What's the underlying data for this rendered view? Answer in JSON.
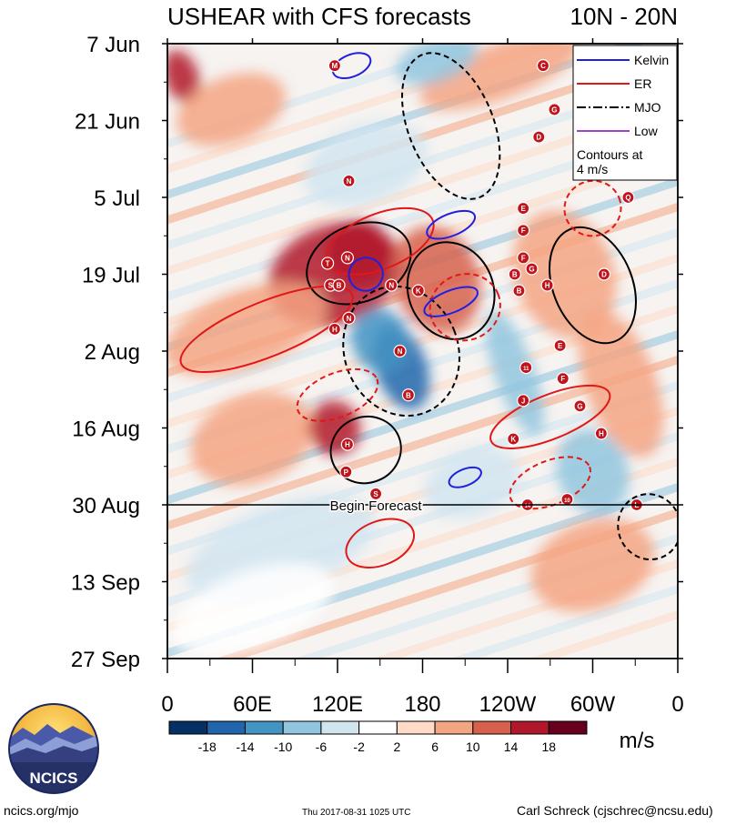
{
  "chart_data": {
    "type": "heatmap",
    "title": "USHEAR with CFS forecasts",
    "region": "10N - 20N",
    "x_ticks": [
      "0",
      "60E",
      "120E",
      "180",
      "120W",
      "60W",
      "0"
    ],
    "x_tick_lons": [
      0,
      60,
      120,
      180,
      240,
      300,
      360
    ],
    "xlim": [
      0,
      360
    ],
    "y_ticks": [
      "7 Jun",
      "21 Jun",
      "5 Jul",
      "19 Jul",
      "2 Aug",
      "16 Aug",
      "30 Aug",
      "13 Sep",
      "27 Sep"
    ],
    "y_tick_days": [
      0,
      14,
      28,
      42,
      56,
      70,
      84,
      98,
      112
    ],
    "ylim_days": [
      0,
      112
    ],
    "forecast_start_day": 84,
    "forecast_label": "Begin Forecast",
    "colorbar": {
      "labels": [
        "-18",
        "-14",
        "-10",
        "-6",
        "-2",
        "2",
        "6",
        "10",
        "14",
        "18"
      ],
      "colors": [
        "#053061",
        "#2166ac",
        "#4393c3",
        "#92c5de",
        "#d1e5f0",
        "#ffffff",
        "#fddbc7",
        "#f4a582",
        "#d6604d",
        "#b2182b",
        "#67001f"
      ],
      "units": "m/s"
    },
    "legend": {
      "position": "top-right",
      "entries": [
        {
          "label": "Kelvin",
          "color": "#2020e0",
          "dash": "solid"
        },
        {
          "label": "ER",
          "color": "#e01818",
          "dash": "solid"
        },
        {
          "label": "MJO",
          "color": "#000000",
          "dash": "dashdot"
        },
        {
          "label": "Low",
          "color": "#a040d0",
          "dash": "solid"
        }
      ],
      "note_line1": "Contours at",
      "note_line2": "4 m/s"
    },
    "field_blobs": [
      {
        "lon": 118,
        "day": 42,
        "rlon": 48,
        "rday": 9,
        "v": 14
      },
      {
        "lon": 135,
        "day": 38,
        "rlon": 22,
        "rday": 6,
        "v": 16
      },
      {
        "lon": 190,
        "day": 43,
        "rlon": 30,
        "rday": 10,
        "v": 12
      },
      {
        "lon": 55,
        "day": 52,
        "rlon": 60,
        "rday": 7,
        "v": 8
      },
      {
        "lon": 165,
        "day": 59,
        "rlon": 18,
        "rday": 8,
        "v": -18
      },
      {
        "lon": 150,
        "day": 54,
        "rlon": 20,
        "rday": 6,
        "v": -12
      },
      {
        "lon": 280,
        "day": 42,
        "rlon": 35,
        "rday": 12,
        "v": 8
      },
      {
        "lon": 60,
        "day": 72,
        "rlon": 45,
        "rday": 8,
        "v": 6
      },
      {
        "lon": 118,
        "day": 70,
        "rlon": 18,
        "rday": 5,
        "v": 14
      },
      {
        "lon": 10,
        "day": 6,
        "rlon": 12,
        "rday": 5,
        "v": 14
      },
      {
        "lon": 235,
        "day": 5,
        "rlon": 60,
        "rday": 5,
        "v": 8
      },
      {
        "lon": 190,
        "day": 3,
        "rlon": 30,
        "rday": 4,
        "v": -10
      },
      {
        "lon": 140,
        "day": 22,
        "rlon": 45,
        "rday": 7,
        "v": -6
      },
      {
        "lon": 300,
        "day": 78,
        "rlon": 25,
        "rday": 8,
        "v": -10
      },
      {
        "lon": 215,
        "day": 80,
        "rlon": 35,
        "rday": 6,
        "v": -6
      },
      {
        "lon": 320,
        "day": 62,
        "rlon": 25,
        "rday": 14,
        "v": 6
      },
      {
        "lon": 80,
        "day": 92,
        "rlon": 70,
        "rday": 8,
        "v": -6
      },
      {
        "lon": 300,
        "day": 95,
        "rlon": 45,
        "rday": 8,
        "v": 6
      },
      {
        "lon": 60,
        "day": 103,
        "rlon": 60,
        "rday": 7,
        "v": -2
      },
      {
        "lon": 245,
        "day": 60,
        "rlon": 14,
        "rday": 12,
        "v": -8
      },
      {
        "lon": 45,
        "day": 12,
        "rlon": 40,
        "rday": 6,
        "v": 6
      }
    ],
    "contours": [
      {
        "type": "MJO",
        "dash": "solid",
        "lon": 135,
        "day": 40,
        "rlon": 38,
        "rday": 7
      },
      {
        "type": "MJO",
        "dash": "solid",
        "lon": 200,
        "day": 45,
        "rlon": 30,
        "rday": 9
      },
      {
        "type": "MJO",
        "dash": "solid",
        "lon": 300,
        "day": 44,
        "rlon": 28,
        "rday": 11
      },
      {
        "type": "MJO",
        "dash": "solid",
        "lon": 140,
        "day": 74,
        "rlon": 25,
        "rday": 6
      },
      {
        "type": "MJO",
        "dash": "dashed",
        "lon": 165,
        "day": 56,
        "rlon": 40,
        "rday": 12
      },
      {
        "type": "MJO",
        "dash": "dashed",
        "lon": 200,
        "day": 15,
        "rlon": 30,
        "rday": 14
      },
      {
        "type": "MJO",
        "dash": "dashed",
        "lon": 340,
        "day": 88,
        "rlon": 22,
        "rday": 6
      },
      {
        "type": "ER",
        "dash": "solid",
        "lon": 70,
        "day": 52,
        "rlon": 65,
        "rday": 5
      },
      {
        "type": "ER",
        "dash": "solid",
        "lon": 150,
        "day": 36,
        "rlon": 40,
        "rday": 5
      },
      {
        "type": "ER",
        "dash": "solid",
        "lon": 270,
        "day": 68,
        "rlon": 45,
        "rday": 4
      },
      {
        "type": "ER",
        "dash": "solid",
        "lon": 150,
        "day": 91,
        "rlon": 25,
        "rday": 4
      },
      {
        "type": "ER",
        "dash": "dashed",
        "lon": 120,
        "day": 64,
        "rlon": 30,
        "rday": 4
      },
      {
        "type": "ER",
        "dash": "dashed",
        "lon": 210,
        "day": 48,
        "rlon": 25,
        "rday": 6
      },
      {
        "type": "ER",
        "dash": "dashed",
        "lon": 300,
        "day": 30,
        "rlon": 20,
        "rday": 5
      },
      {
        "type": "ER",
        "dash": "dashed",
        "lon": 270,
        "day": 80,
        "rlon": 30,
        "rday": 4
      },
      {
        "type": "Kelvin",
        "dash": "solid",
        "lon": 140,
        "day": 42,
        "rlon": 12,
        "rday": 3
      },
      {
        "type": "Kelvin",
        "dash": "solid",
        "lon": 200,
        "day": 47,
        "rlon": 20,
        "rday": 2
      },
      {
        "type": "Kelvin",
        "dash": "solid",
        "lon": 200,
        "day": 33,
        "rlon": 18,
        "rday": 2
      },
      {
        "type": "Kelvin",
        "dash": "solid",
        "lon": 210,
        "day": 79,
        "rlon": 12,
        "rday": 1.5
      },
      {
        "type": "Kelvin",
        "dash": "solid",
        "lon": 130,
        "day": 4,
        "rlon": 14,
        "rday": 2
      }
    ],
    "storm_markers": [
      {
        "label": "M",
        "lon": 118,
        "day": 4
      },
      {
        "label": "C",
        "lon": 265,
        "day": 4
      },
      {
        "label": "G",
        "lon": 273,
        "day": 12
      },
      {
        "label": "D",
        "lon": 262,
        "day": 17
      },
      {
        "label": "N",
        "lon": 128,
        "day": 25
      },
      {
        "label": "E",
        "lon": 251,
        "day": 30
      },
      {
        "label": "Q",
        "lon": 325,
        "day": 28
      },
      {
        "label": "F",
        "lon": 251,
        "day": 34
      },
      {
        "label": "F",
        "lon": 251,
        "day": 39
      },
      {
        "label": "T",
        "lon": 113,
        "day": 40
      },
      {
        "label": "N",
        "lon": 127,
        "day": 39
      },
      {
        "label": "B",
        "lon": 245,
        "day": 42
      },
      {
        "label": "G",
        "lon": 257,
        "day": 41
      },
      {
        "label": "D",
        "lon": 308,
        "day": 42
      },
      {
        "label": "S",
        "lon": 115,
        "day": 44
      },
      {
        "label": "B",
        "lon": 121,
        "day": 44
      },
      {
        "label": "N",
        "lon": 158,
        "day": 44
      },
      {
        "label": "K",
        "lon": 177,
        "day": 45
      },
      {
        "label": "B",
        "lon": 248,
        "day": 45
      },
      {
        "label": "H",
        "lon": 268,
        "day": 44
      },
      {
        "label": "N",
        "lon": 128,
        "day": 50
      },
      {
        "label": "H",
        "lon": 118,
        "day": 52
      },
      {
        "label": "E",
        "lon": 277,
        "day": 55
      },
      {
        "label": "N",
        "lon": 164,
        "day": 56
      },
      {
        "label": "11",
        "lon": 253,
        "day": 59
      },
      {
        "label": "F",
        "lon": 279,
        "day": 61
      },
      {
        "label": "B",
        "lon": 170,
        "day": 64
      },
      {
        "label": "J",
        "lon": 251,
        "day": 65
      },
      {
        "label": "G",
        "lon": 291,
        "day": 66
      },
      {
        "label": "H",
        "lon": 306,
        "day": 71
      },
      {
        "label": "K",
        "lon": 244,
        "day": 72
      },
      {
        "label": "H",
        "lon": 127,
        "day": 73
      },
      {
        "label": "P",
        "lon": 126,
        "day": 78
      },
      {
        "label": "S",
        "lon": 147,
        "day": 82
      },
      {
        "label": "14",
        "lon": 254,
        "day": 84
      },
      {
        "label": "10",
        "lon": 282,
        "day": 83
      },
      {
        "label": "L",
        "lon": 331,
        "day": 84
      }
    ]
  },
  "footer": {
    "logo_text": "NCICS",
    "site": "ncics.org/mjo",
    "timestamp": "Thu 2017-08-31 1025 UTC",
    "author": "Carl Schreck (cjschrec@ncsu.edu)"
  }
}
